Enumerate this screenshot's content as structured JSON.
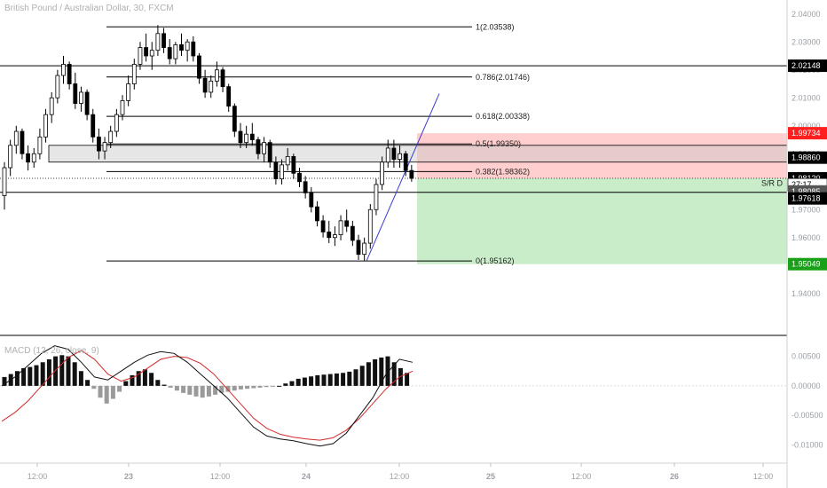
{
  "chart_data": [
    {
      "type": "candlestick",
      "title": "British Pound / Australian Dollar, 30, FXCM",
      "y_range": [
        1.925,
        2.045
      ],
      "y_ticks": [
        "2.04000",
        "2.03000",
        "2.02000",
        "2.01000",
        "2.00000",
        "1.99000",
        "1.98000",
        "1.97000",
        "1.96000",
        "1.95000",
        "1.94000"
      ],
      "x_labels": [
        "12:00",
        "23",
        "12:00",
        "24",
        "12:00",
        "25",
        "12:00",
        "26",
        "12:00"
      ],
      "fib_levels": [
        {
          "label": "1(2.03538)",
          "value": 2.03538
        },
        {
          "label": "0.786(2.01746)",
          "value": 2.01746
        },
        {
          "label": "0.618(2.00338)",
          "value": 2.00338
        },
        {
          "label": "0.5(1.99350)",
          "value": 1.9935
        },
        {
          "label": "0.382(1.98362)",
          "value": 1.98362
        },
        {
          "label": "0(1.95162)",
          "value": 1.95162
        }
      ],
      "horizontal_lines": [
        2.02148,
        1.97618
      ],
      "sr_label": "S/R D",
      "support_zone": [
        1.987,
        1.993
      ],
      "short_position": {
        "stop": 1.99734,
        "entry": 1.9812,
        "target": 1.95049
      },
      "price_tags": [
        {
          "label": "2.02148",
          "value": 2.02148,
          "bg": "#000000",
          "fg": "#ffffff"
        },
        {
          "label": "1.99734",
          "value": 1.99734,
          "bg": "#ff1f1f",
          "fg": "#ffffff"
        },
        {
          "label": "1.98860",
          "value": 1.9886,
          "bg": "#000000",
          "fg": "#ffffff"
        },
        {
          "label": "1.98120",
          "value": 1.9812,
          "bg": "#000000",
          "fg": "#ffffff"
        },
        {
          "label": "27:17",
          "value": 1.9789,
          "bg": "#ffffff",
          "fg": "#000000"
        },
        {
          "label": "1.98085",
          "value": 1.9765,
          "bg": "#555555",
          "fg": "#ffffff"
        },
        {
          "label": "1.97618",
          "value": 1.974,
          "bg": "#000000",
          "fg": "#ffffff"
        },
        {
          "label": "1.95049",
          "value": 1.95049,
          "bg": "#18a018",
          "fg": "#ffffff"
        }
      ],
      "candles": [
        [
          1.975,
          1.987,
          1.97,
          1.985
        ],
        [
          1.985,
          1.995,
          1.982,
          1.993
        ],
        [
          1.993,
          2.0,
          1.99,
          1.998
        ],
        [
          1.998,
          1.999,
          1.988,
          1.99
        ],
        [
          1.99,
          1.993,
          1.984,
          1.987
        ],
        [
          1.987,
          1.992,
          1.985,
          1.99
        ],
        [
          1.99,
          1.999,
          1.988,
          1.996
        ],
        [
          1.996,
          2.006,
          1.994,
          2.004
        ],
        [
          2.004,
          2.012,
          2.001,
          2.01
        ],
        [
          2.01,
          2.02,
          2.008,
          2.018
        ],
        [
          2.018,
          2.025,
          2.015,
          2.022
        ],
        [
          2.022,
          2.023,
          2.013,
          2.015
        ],
        [
          2.015,
          2.019,
          2.006,
          2.008
        ],
        [
          2.008,
          2.014,
          2.005,
          2.012
        ],
        [
          2.012,
          2.013,
          2.002,
          2.004
        ],
        [
          2.004,
          2.006,
          1.994,
          1.996
        ],
        [
          1.996,
          1.999,
          1.988,
          1.991
        ],
        [
          1.991,
          1.996,
          1.988,
          1.994
        ],
        [
          1.994,
          2.0,
          1.992,
          1.998
        ],
        [
          1.998,
          2.006,
          1.996,
          2.004
        ],
        [
          2.004,
          2.011,
          2.002,
          2.009
        ],
        [
          2.009,
          2.018,
          2.007,
          2.015
        ],
        [
          2.015,
          2.024,
          2.013,
          2.022
        ],
        [
          2.022,
          2.03,
          2.02,
          2.028
        ],
        [
          2.028,
          2.033,
          2.023,
          2.025
        ],
        [
          2.025,
          2.03,
          2.02,
          2.027
        ],
        [
          2.027,
          2.036,
          2.025,
          2.033
        ],
        [
          2.033,
          2.035,
          2.026,
          2.028
        ],
        [
          2.028,
          2.031,
          2.022,
          2.024
        ],
        [
          2.024,
          2.03,
          2.022,
          2.029
        ],
        [
          2.029,
          2.033,
          2.025,
          2.027
        ],
        [
          2.027,
          2.031,
          2.023,
          2.03
        ],
        [
          2.03,
          2.032,
          2.023,
          2.025
        ],
        [
          2.025,
          2.026,
          2.015,
          2.017
        ],
        [
          2.017,
          2.02,
          2.01,
          2.012
        ],
        [
          2.012,
          2.018,
          2.01,
          2.016
        ],
        [
          2.016,
          2.023,
          2.014,
          2.02
        ],
        [
          2.02,
          2.021,
          2.012,
          2.014
        ],
        [
          2.014,
          2.015,
          2.005,
          2.007
        ],
        [
          2.007,
          2.008,
          1.996,
          1.998
        ],
        [
          1.998,
          2.001,
          1.992,
          1.994
        ],
        [
          1.994,
          2.0,
          1.992,
          1.997
        ],
        [
          1.997,
          2.001,
          1.993,
          1.995
        ],
        [
          1.995,
          1.996,
          1.988,
          1.99
        ],
        [
          1.99,
          1.996,
          1.987,
          1.994
        ],
        [
          1.994,
          1.995,
          1.985,
          1.987
        ],
        [
          1.987,
          1.989,
          1.979,
          1.981
        ],
        [
          1.981,
          1.988,
          1.979,
          1.986
        ],
        [
          1.986,
          1.992,
          1.984,
          1.989
        ],
        [
          1.989,
          1.99,
          1.981,
          1.983
        ],
        [
          1.983,
          1.985,
          1.978,
          1.98
        ],
        [
          1.98,
          1.982,
          1.974,
          1.976
        ],
        [
          1.976,
          1.978,
          1.969,
          1.971
        ],
        [
          1.971,
          1.973,
          1.964,
          1.966
        ],
        [
          1.966,
          1.968,
          1.96,
          1.962
        ],
        [
          1.962,
          1.966,
          1.958,
          1.96
        ],
        [
          1.96,
          1.964,
          1.957,
          1.961
        ],
        [
          1.961,
          1.968,
          1.959,
          1.966
        ],
        [
          1.966,
          1.97,
          1.962,
          1.964
        ],
        [
          1.964,
          1.966,
          1.957,
          1.959
        ],
        [
          1.959,
          1.961,
          1.952,
          1.954
        ],
        [
          1.954,
          1.96,
          1.9516,
          1.958
        ],
        [
          1.958,
          1.972,
          1.956,
          1.97
        ],
        [
          1.97,
          1.981,
          1.968,
          1.979
        ],
        [
          1.979,
          1.989,
          1.977,
          1.987
        ],
        [
          1.987,
          1.995,
          1.985,
          1.992
        ],
        [
          1.992,
          1.995,
          1.985,
          1.988
        ],
        [
          1.988,
          1.993,
          1.985,
          1.99
        ],
        [
          1.99,
          1.991,
          1.982,
          1.984
        ],
        [
          1.984,
          1.986,
          1.98,
          1.9812
        ]
      ]
    },
    {
      "type": "macd",
      "title": "MACD (12, 26, close, 9)",
      "y_ticks": [
        "0.00500",
        "0.00000",
        "-0.00500",
        "-0.01000"
      ],
      "y_range": [
        -0.0125,
        0.0075
      ],
      "histogram": [
        0.0015,
        0.002,
        0.0025,
        0.003,
        0.0032,
        0.0035,
        0.004,
        0.0045,
        0.005,
        0.0052,
        0.005,
        0.004,
        0.0025,
        0.001,
        -0.0005,
        -0.002,
        -0.003,
        -0.0022,
        -0.001,
        0.0008,
        0.0018,
        0.0025,
        0.0028,
        0.0022,
        0.001,
        0.0002,
        -0.0003,
        -0.0008,
        -0.0012,
        -0.0015,
        -0.0018,
        -0.002,
        -0.0018,
        -0.0015,
        -0.0012,
        -0.001,
        -0.0008,
        -0.0006,
        -0.0005,
        -0.0004,
        -0.0003,
        -0.0002,
        -0.0001,
        0.0,
        0.0004,
        0.0008,
        0.0012,
        0.0014,
        0.0016,
        0.0018,
        0.0019,
        0.002,
        0.0021,
        0.0022,
        0.0024,
        0.0028,
        0.0034,
        0.004,
        0.0045,
        0.0048,
        0.005,
        0.004,
        0.003,
        0.0022
      ],
      "macd_line": [
        0.0,
        0.0015,
        0.0035,
        0.0055,
        0.0068,
        0.0062,
        0.004,
        0.0015,
        0.001,
        0.0025,
        0.004,
        0.0052,
        0.0058,
        0.0055,
        0.004,
        0.002,
        0.0,
        -0.002,
        -0.0045,
        -0.007,
        -0.0085,
        -0.009,
        -0.0093,
        -0.0098,
        -0.0102,
        -0.0098,
        -0.008,
        -0.005,
        -0.002,
        0.002,
        0.0045,
        0.004
      ],
      "signal_line": [
        -0.006,
        -0.0045,
        -0.0025,
        0.0,
        0.0025,
        0.0048,
        0.006,
        0.0045,
        0.002,
        0.0008,
        0.0015,
        0.003,
        0.0045,
        0.005,
        0.0048,
        0.0038,
        0.002,
        -0.0005,
        -0.003,
        -0.0055,
        -0.0072,
        -0.0082,
        -0.0087,
        -0.009,
        -0.0092,
        -0.0088,
        -0.0075,
        -0.0055,
        -0.003,
        -0.0005,
        0.0015,
        0.0025
      ]
    }
  ]
}
